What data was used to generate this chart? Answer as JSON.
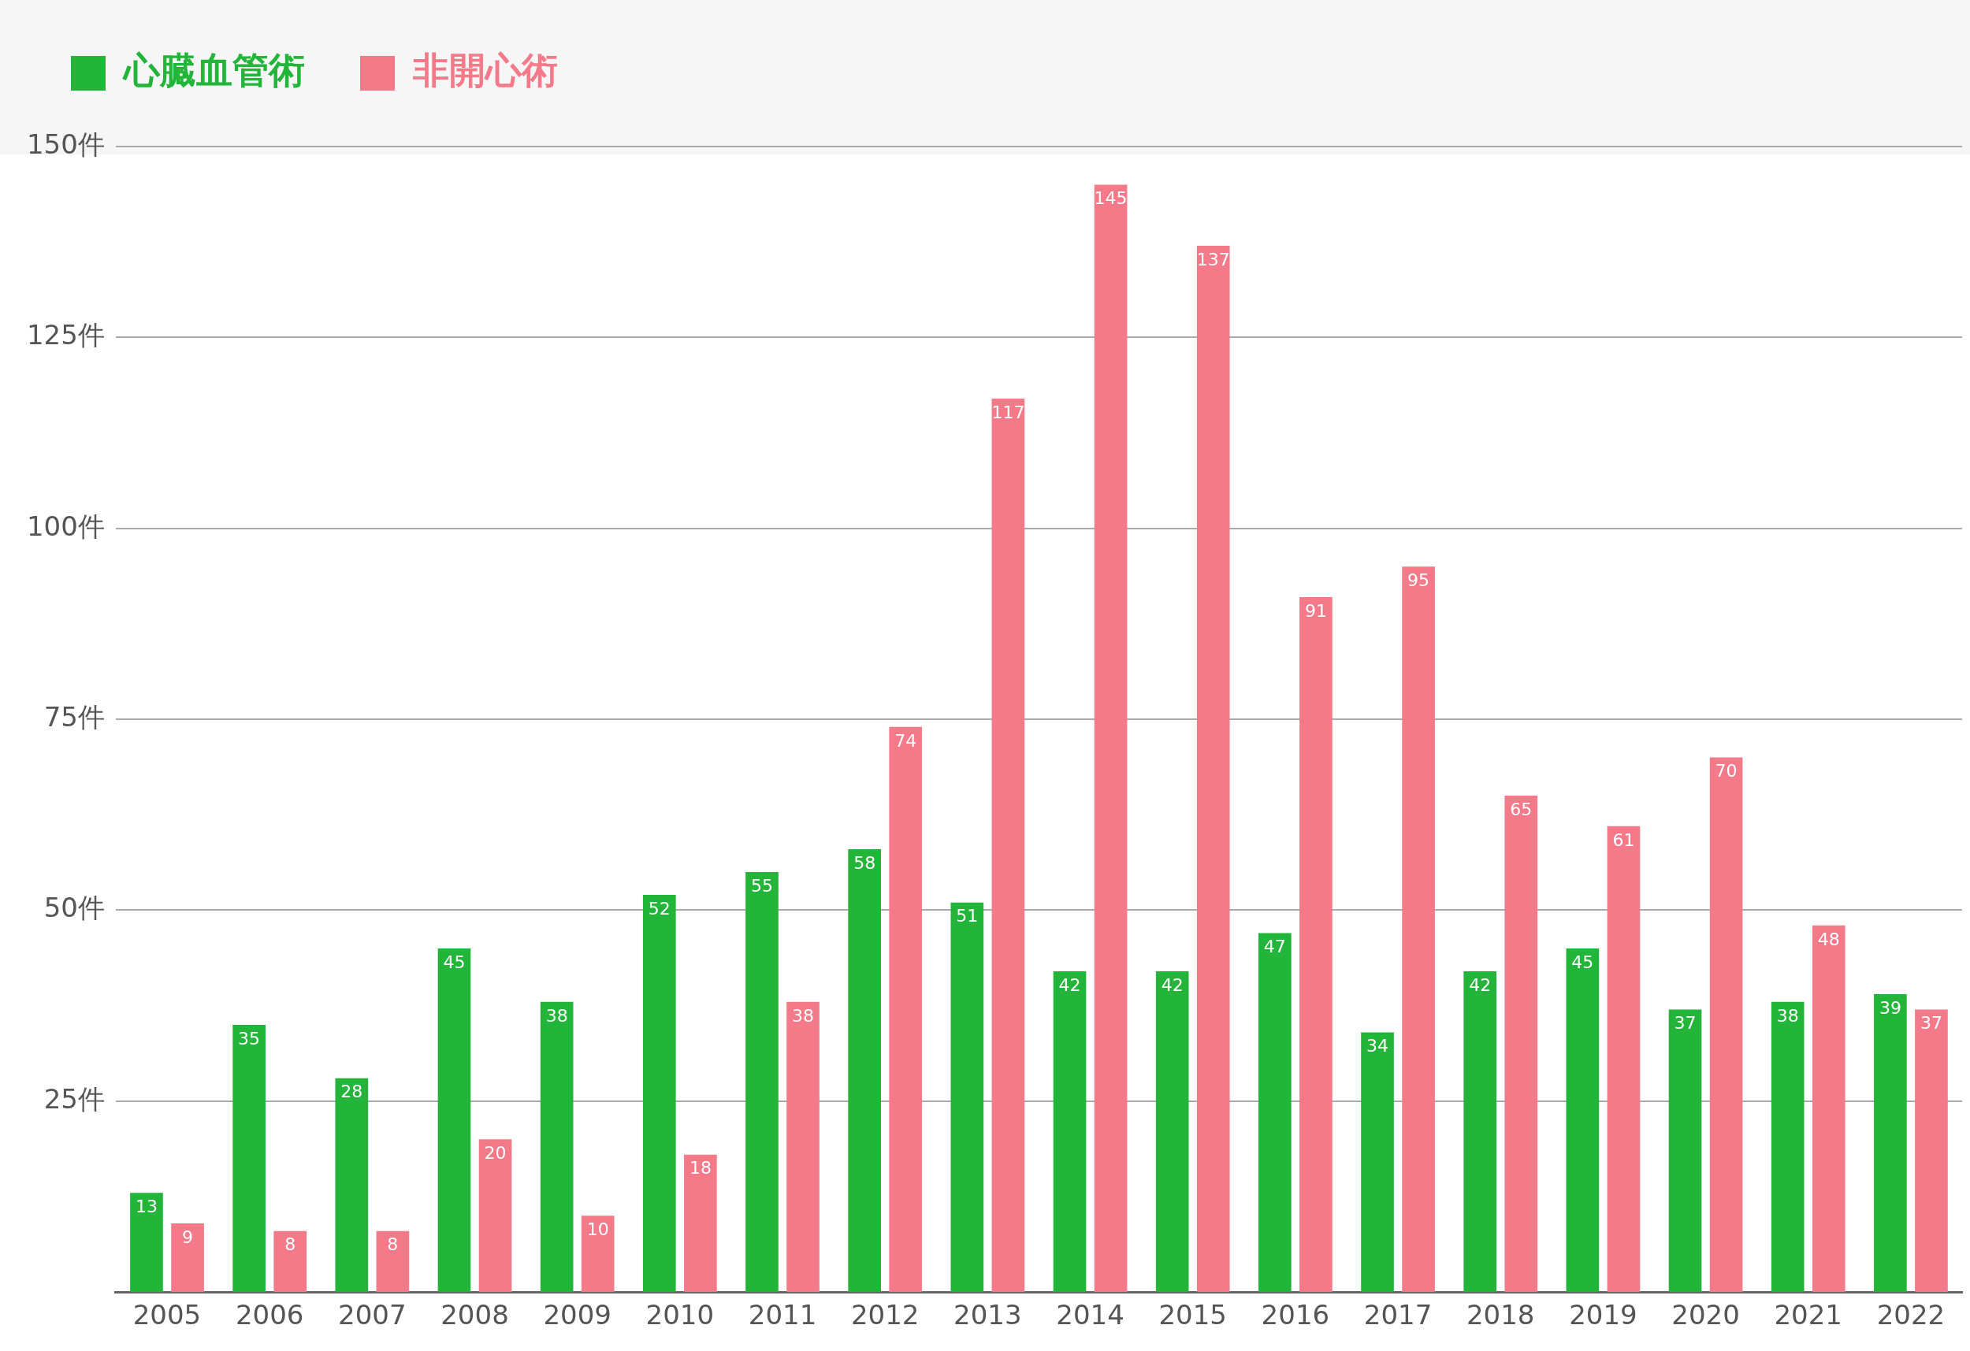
{
  "chart_data": {
    "type": "bar",
    "categories": [
      "2005",
      "2006",
      "2007",
      "2008",
      "2009",
      "2010",
      "2011",
      "2012",
      "2013",
      "2014",
      "2015",
      "2016",
      "2017",
      "2018",
      "2019",
      "2020",
      "2021",
      "2022"
    ],
    "series": [
      {
        "name": "心臓血管術",
        "color": "#22b53a",
        "values": [
          13,
          35,
          28,
          45,
          38,
          52,
          55,
          58,
          51,
          42,
          42,
          47,
          34,
          42,
          45,
          37,
          38,
          39
        ]
      },
      {
        "name": "非開心術",
        "color": "#f47a8a",
        "values": [
          9,
          8,
          8,
          20,
          10,
          18,
          38,
          74,
          117,
          145,
          137,
          91,
          95,
          65,
          61,
          70,
          48,
          37
        ]
      }
    ],
    "ylim": [
      0,
      150
    ],
    "yticks": [
      {
        "value": 25,
        "label": "25件"
      },
      {
        "value": 50,
        "label": "50件"
      },
      {
        "value": 75,
        "label": "75件"
      },
      {
        "value": 100,
        "label": "100件"
      },
      {
        "value": 125,
        "label": "125件"
      },
      {
        "value": 150,
        "label": "150件"
      }
    ],
    "grid": "y",
    "legend": "top left",
    "data_labels": true
  }
}
